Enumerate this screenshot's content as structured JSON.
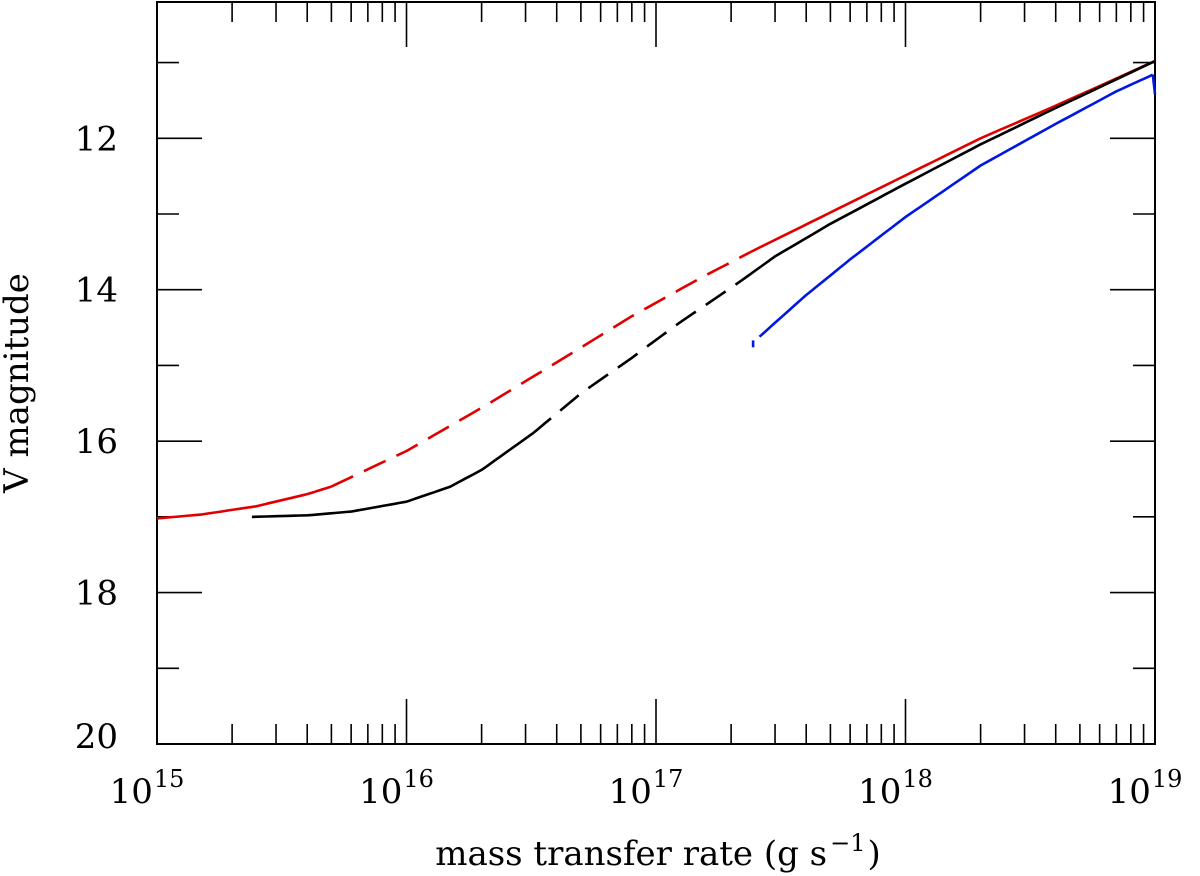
{
  "chart_data": {
    "type": "line",
    "xlabel": "mass transfer rate (g s",
    "xlabel_sup": "−1",
    "xlabel_close": ")",
    "ylabel": "V magnitude",
    "x_scale": "log",
    "xlim": [
      1000000000000000.0,
      1e+19
    ],
    "ylim": [
      20,
      10.2
    ],
    "y_inverted": true,
    "grid": false,
    "x_ticks": [
      {
        "base": "10",
        "exp": "15",
        "value": 1000000000000000.0
      },
      {
        "base": "10",
        "exp": "16",
        "value": 1e+16
      },
      {
        "base": "10",
        "exp": "17",
        "value": 1e+17
      },
      {
        "base": "10",
        "exp": "18",
        "value": 1e+18
      },
      {
        "base": "10",
        "exp": "19",
        "value": 1e+19
      }
    ],
    "y_tick_labels": [
      "12",
      "14",
      "16",
      "18",
      "20"
    ],
    "y_tick_values": [
      12,
      14,
      16,
      18,
      20
    ],
    "y_minor_ticks": [
      11,
      12,
      13,
      14,
      15,
      16,
      17,
      18,
      19
    ],
    "series": [
      {
        "color": "#e00000",
        "segments": [
          {
            "style": "solid",
            "x": [
              1000000000000000.0,
              1500000000000000.0,
              2500000000000000.0,
              4000000000000000.0,
              5000000000000000.0
            ],
            "y": [
              17.02,
              16.97,
              16.86,
              16.7,
              16.6
            ]
          },
          {
            "style": "dashed",
            "x": [
              5000000000000000.0,
              1e+16,
              2e+16,
              4e+16,
              8e+16,
              1.5e+17,
              2.4e+17
            ],
            "y": [
              16.6,
              16.13,
              15.56,
              14.96,
              14.35,
              13.85,
              13.5
            ]
          },
          {
            "style": "solid",
            "x": [
              2.4e+17,
              5e+17,
              1e+18,
              2e+18,
              4e+18,
              1e+19
            ],
            "y": [
              13.5,
              12.98,
              12.49,
              12.0,
              11.57,
              10.98
            ]
          }
        ]
      },
      {
        "color": "#000000",
        "segments": [
          {
            "style": "solid",
            "x": [
              2400000000000000.0,
              4000000000000000.0,
              6000000000000000.0,
              1e+16,
              1.5e+16,
              2e+16,
              3.2e+16
            ],
            "y": [
              17.0,
              16.98,
              16.93,
              16.8,
              16.6,
              16.38,
              15.9
            ]
          },
          {
            "style": "dashed",
            "x": [
              3.2e+16,
              5e+16,
              8e+16,
              1.2e+17,
              2.2e+17
            ],
            "y": [
              15.9,
              15.37,
              14.9,
              14.47,
              13.88
            ]
          },
          {
            "style": "solid",
            "x": [
              2.2e+17,
              3e+17,
              5e+17,
              1e+18,
              2e+18,
              4e+18,
              1e+19
            ],
            "y": [
              13.88,
              13.56,
              13.13,
              12.6,
              12.08,
              11.6,
              10.98
            ]
          }
        ]
      },
      {
        "color": "#0018e0",
        "segments": [
          {
            "style": "solid",
            "x": [
              2.6e+17,
              4e+17,
              6e+17,
              1e+18,
              2e+18,
              4e+18,
              7e+18,
              9.8e+18
            ],
            "y": [
              14.62,
              14.07,
              13.6,
              13.04,
              12.36,
              11.81,
              11.38,
              11.16
            ]
          },
          {
            "style": "solid",
            "x": [
              9.8e+18,
              1e+19
            ],
            "y": [
              11.16,
              11.42
            ]
          },
          {
            "style": "solid",
            "x": [
              2.45e+17,
              2.45e+17
            ],
            "y": [
              14.67,
              14.76
            ]
          }
        ]
      }
    ]
  }
}
